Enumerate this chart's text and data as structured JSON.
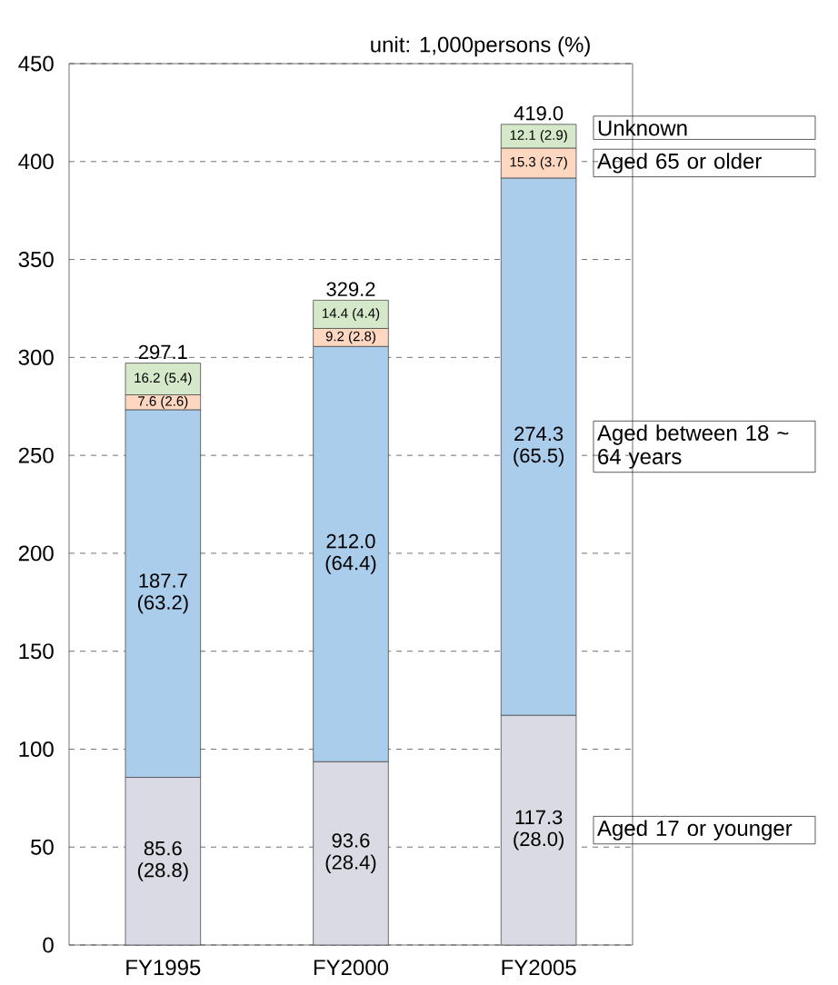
{
  "chart_data": {
    "type": "bar",
    "stacked": true,
    "subtitle": "unit: 1,000persons (%)",
    "categories": [
      "FY1995",
      "FY2000",
      "FY2005"
    ],
    "series": [
      {
        "name": "Aged 17 or younger",
        "color": "#d9dae3",
        "values": [
          85.6,
          93.6,
          117.3
        ],
        "value_labels": [
          "85.6 (28.8)",
          "93.6 (28.4)",
          "117.3 (28.0)"
        ]
      },
      {
        "name": "Aged between 18 ~ 64 years",
        "color": "#abcdec",
        "values": [
          187.7,
          212.0,
          274.3
        ],
        "value_labels": [
          "187.7 (63.2)",
          "212.0 (64.4)",
          "274.3 (65.5)"
        ]
      },
      {
        "name": "Aged 65 or older",
        "color": "#fdd7c0",
        "values": [
          7.6,
          9.2,
          15.3
        ],
        "value_labels": [
          "7.6 (2.6)",
          "9.2 (2.8)",
          "15.3 (3.7)"
        ]
      },
      {
        "name": "Unknown",
        "color": "#d5e8c9",
        "values": [
          16.2,
          14.4,
          12.1
        ],
        "value_labels": [
          "16.2 (5.4)",
          "14.4 (4.4)",
          "12.1 (2.9)"
        ]
      }
    ],
    "totals": [
      "297.1",
      "329.2",
      "419.0"
    ],
    "ylim": [
      0,
      450
    ],
    "yticks": [
      0,
      50,
      100,
      150,
      200,
      250,
      300,
      350,
      400,
      450
    ],
    "grid": "y"
  }
}
